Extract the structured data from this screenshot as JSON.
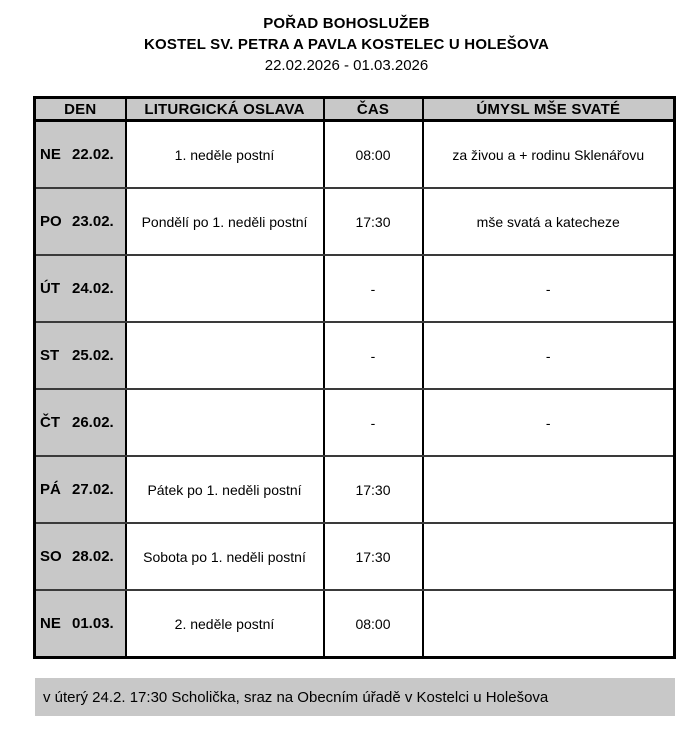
{
  "header": {
    "title": "POŘAD BOHOSLUŽEB",
    "subtitle": "KOSTEL SV. PETRA A PAVLA KOSTELEC U HOLEŠOVA",
    "date_range": "22.02.2026 - 01.03.2026"
  },
  "table": {
    "columns": [
      "DEN",
      "LITURGICKÁ OSLAVA",
      "ČAS",
      "ÚMYSL MŠE SVATÉ"
    ],
    "rows": [
      {
        "day": "NE",
        "date": "22.02.",
        "celebration": "1. neděle postní",
        "time": "08:00",
        "intention": "za živou a + rodinu Sklenářovu"
      },
      {
        "day": "PO",
        "date": "23.02.",
        "celebration": "Pondělí po 1. neděli postní",
        "time": "17:30",
        "intention": "mše svatá a katecheze"
      },
      {
        "day": "ÚT",
        "date": "24.02.",
        "celebration": "",
        "time": "-",
        "intention": "-"
      },
      {
        "day": "ST",
        "date": "25.02.",
        "celebration": "",
        "time": "-",
        "intention": "-"
      },
      {
        "day": "ČT",
        "date": "26.02.",
        "celebration": "",
        "time": "-",
        "intention": "-"
      },
      {
        "day": "PÁ",
        "date": "27.02.",
        "celebration": "Pátek po 1. neděli postní",
        "time": "17:30",
        "intention": ""
      },
      {
        "day": "SO",
        "date": "28.02.",
        "celebration": "Sobota po 1. neděli postní",
        "time": "17:30",
        "intention": ""
      },
      {
        "day": "NE",
        "date": "01.03.",
        "celebration": "2. neděle postní",
        "time": "08:00",
        "intention": ""
      }
    ]
  },
  "note": {
    "text": "v úterý 24.2. 17:30 Scholička, sraz na Obecním úřadě v Kostelci u Holešova"
  },
  "colors": {
    "cell_gray": "#c8c8c8",
    "border_black": "#000000"
  }
}
